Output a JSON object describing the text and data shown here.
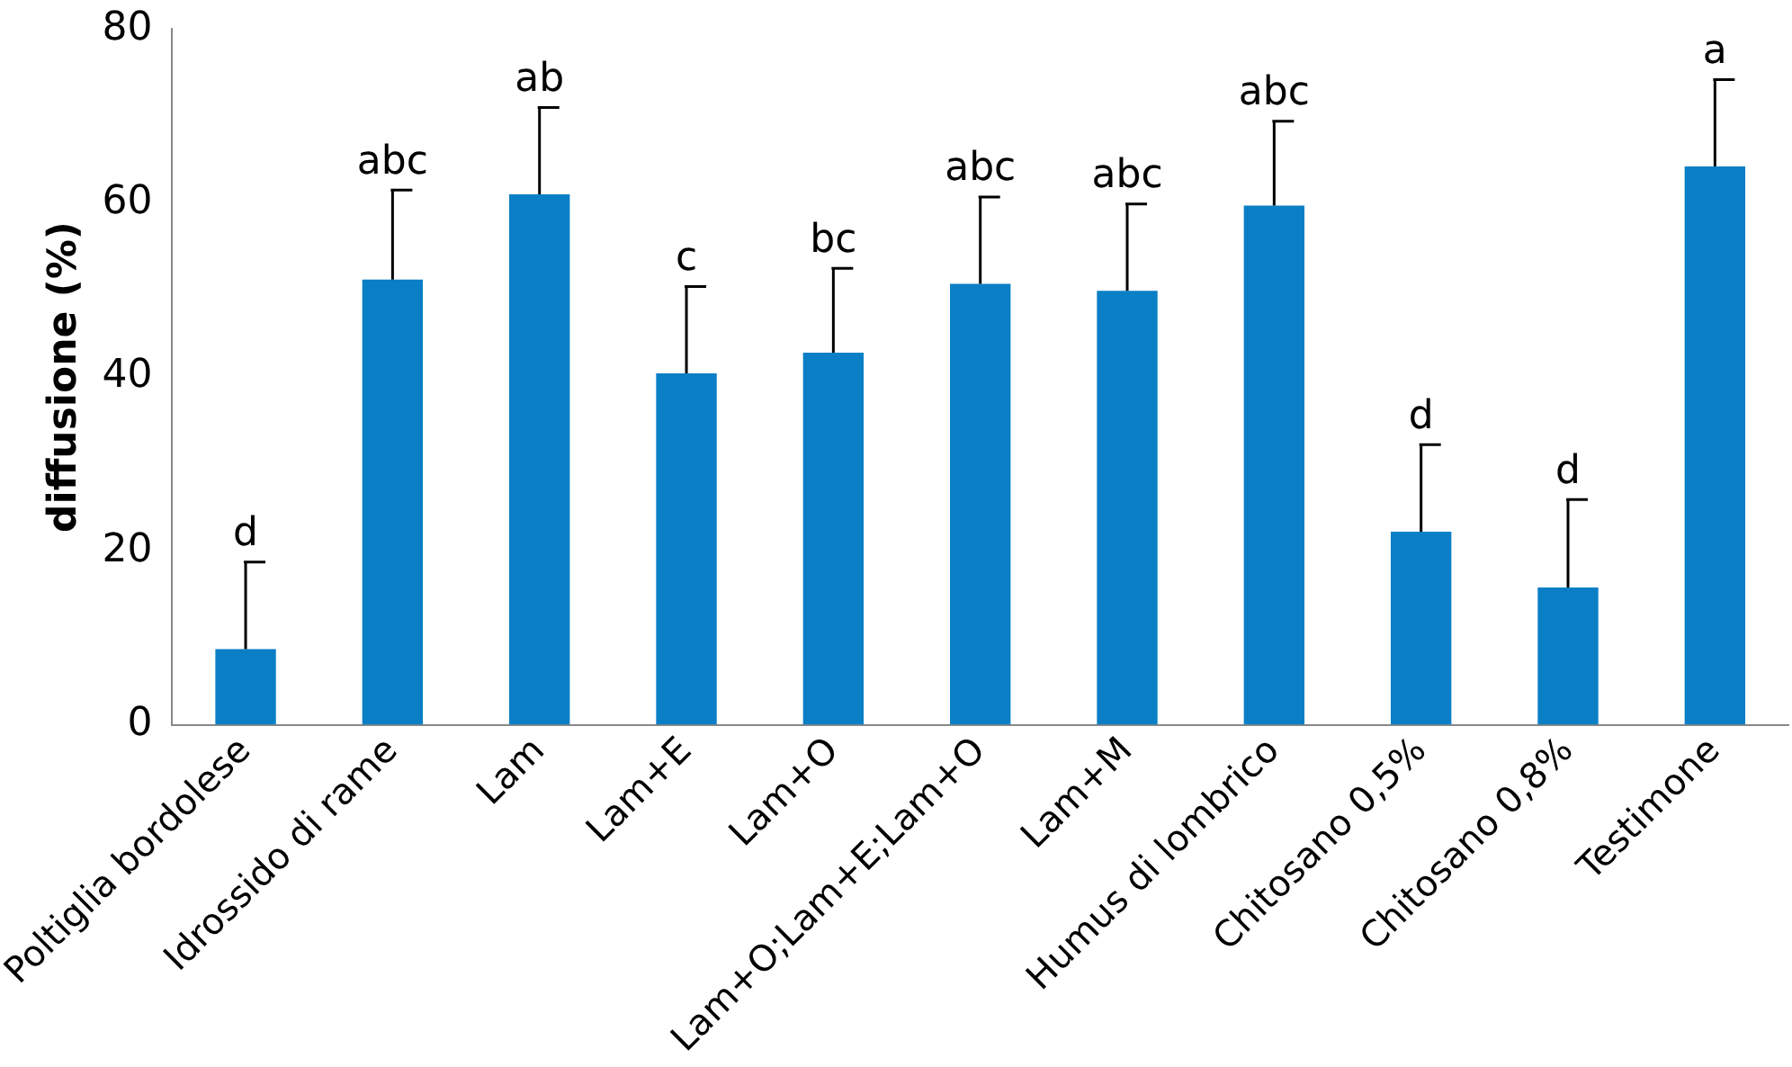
{
  "chart_data": {
    "type": "bar",
    "ylabel": "diffusione (%)",
    "categories": [
      "Poltiglia bordolese",
      "Idrossido di rame",
      "Lam",
      "Lam+E",
      "Lam+O",
      "Lam+O;Lam+E;Lam+O",
      "Lam+M",
      "Humus di lombrico",
      "Chitosano 0,5%",
      "Chitosano 0,8%",
      "Testimone"
    ],
    "values": [
      8.7,
      51.2,
      61,
      40.4,
      42.8,
      50.7,
      49.9,
      59.7,
      22.2,
      15.8,
      64.2
    ],
    "errors": [
      [
        8.7,
        18.7
      ],
      [
        51.2,
        61.5
      ],
      [
        61,
        71
      ],
      [
        40.4,
        50.4
      ],
      [
        42.8,
        52.5
      ],
      [
        50.7,
        60.7
      ],
      [
        49.9,
        59.9
      ],
      [
        59.7,
        69.4
      ],
      [
        22.2,
        32.2
      ],
      [
        15.8,
        25.9
      ],
      [
        64.2,
        74.2
      ]
    ],
    "color": "#0a7fc6",
    "ylim": [
      0,
      80
    ],
    "yticks": [
      0,
      20,
      40,
      60,
      80
    ],
    "grid": false,
    "legend": false,
    "annotations": [
      {
        "text": "d",
        "x": "Poltiglia bordolese",
        "y": 18.7
      },
      {
        "text": "abc",
        "x": "Idrossido di rame",
        "y": 61.5
      },
      {
        "text": "ab",
        "x": "Lam",
        "y": 71
      },
      {
        "text": "c",
        "x": "Lam+E",
        "y": 50.4
      },
      {
        "text": "bc",
        "x": "Lam+O",
        "y": 52.5
      },
      {
        "text": "abc",
        "x": "Lam+O;Lam+E;Lam+O",
        "y": 60.7
      },
      {
        "text": "abc",
        "x": "Lam+M",
        "y": 59.9
      },
      {
        "text": "abc",
        "x": "Humus di lombrico",
        "y": 69.4
      },
      {
        "text": "d",
        "x": "Chitosano 0,5%",
        "y": 32.2
      },
      {
        "text": "d",
        "x": "Chitosano 0,8%",
        "y": 25.9
      },
      {
        "text": "a",
        "x": "Testimone",
        "y": 74.2
      }
    ]
  }
}
